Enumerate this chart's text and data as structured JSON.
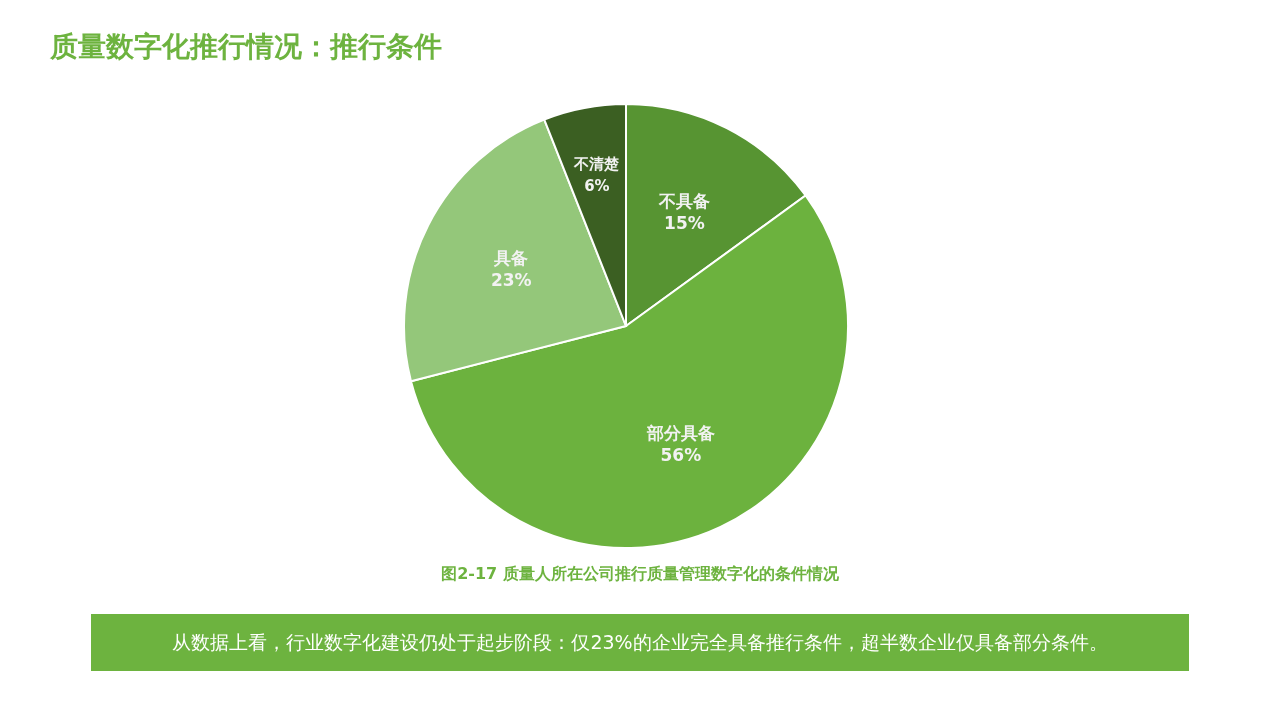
{
  "chart_data": {
    "type": "pie",
    "title": "质量数字化推行情况：推行条件",
    "categories": [
      "不具备",
      "部分具备",
      "具备",
      "不清楚"
    ],
    "values": [
      15,
      56,
      23,
      6
    ],
    "value_labels": [
      "15%",
      "56%",
      "23%",
      "6%"
    ],
    "colors": [
      "#579432",
      "#6cb23e",
      "#94c77a",
      "#3b5f22"
    ],
    "annotations": [
      "图2-17  质量人所在公司推行质量管理数字化的条件情况",
      "从数据上看，行业数字化建设仍处于起步阶段：仅23%的企业完全具备推行条件，超半数企业仅具备部分条件。"
    ]
  }
}
